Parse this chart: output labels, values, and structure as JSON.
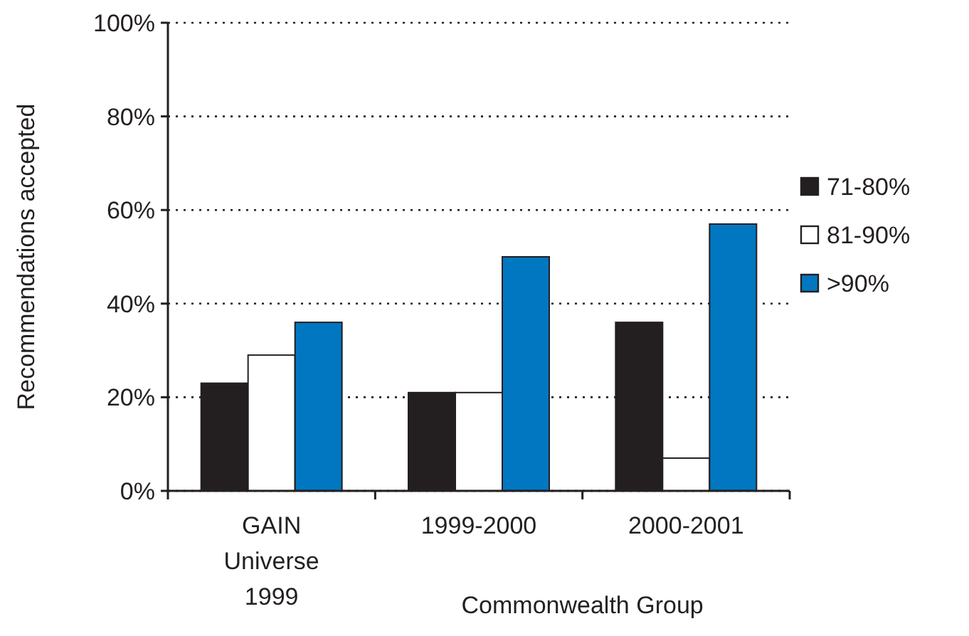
{
  "chart_data": {
    "type": "bar",
    "ylabel": "Recommendations accepted",
    "categories": [
      "GAIN Universe 1999",
      "1999-2000",
      "2000-2001"
    ],
    "series": [
      {
        "name": "71-80%",
        "color": "#231f20",
        "values": [
          23,
          21,
          36
        ]
      },
      {
        "name": "81-90%",
        "color": "#ffffff",
        "values": [
          29,
          21,
          7
        ]
      },
      {
        "name": ">90%",
        "color": "#0077c0",
        "values": [
          36,
          50,
          57
        ]
      }
    ],
    "ylim": [
      0,
      100
    ],
    "yticks": [
      {
        "value": 0,
        "label": "0%"
      },
      {
        "value": 20,
        "label": "20%"
      },
      {
        "value": 40,
        "label": "40%"
      },
      {
        "value": 60,
        "label": "60%"
      },
      {
        "value": 80,
        "label": "80%"
      },
      {
        "value": 100,
        "label": "100%"
      }
    ],
    "grid": "y",
    "legend": "right",
    "annotations": [
      "Commonwealth Group"
    ]
  }
}
